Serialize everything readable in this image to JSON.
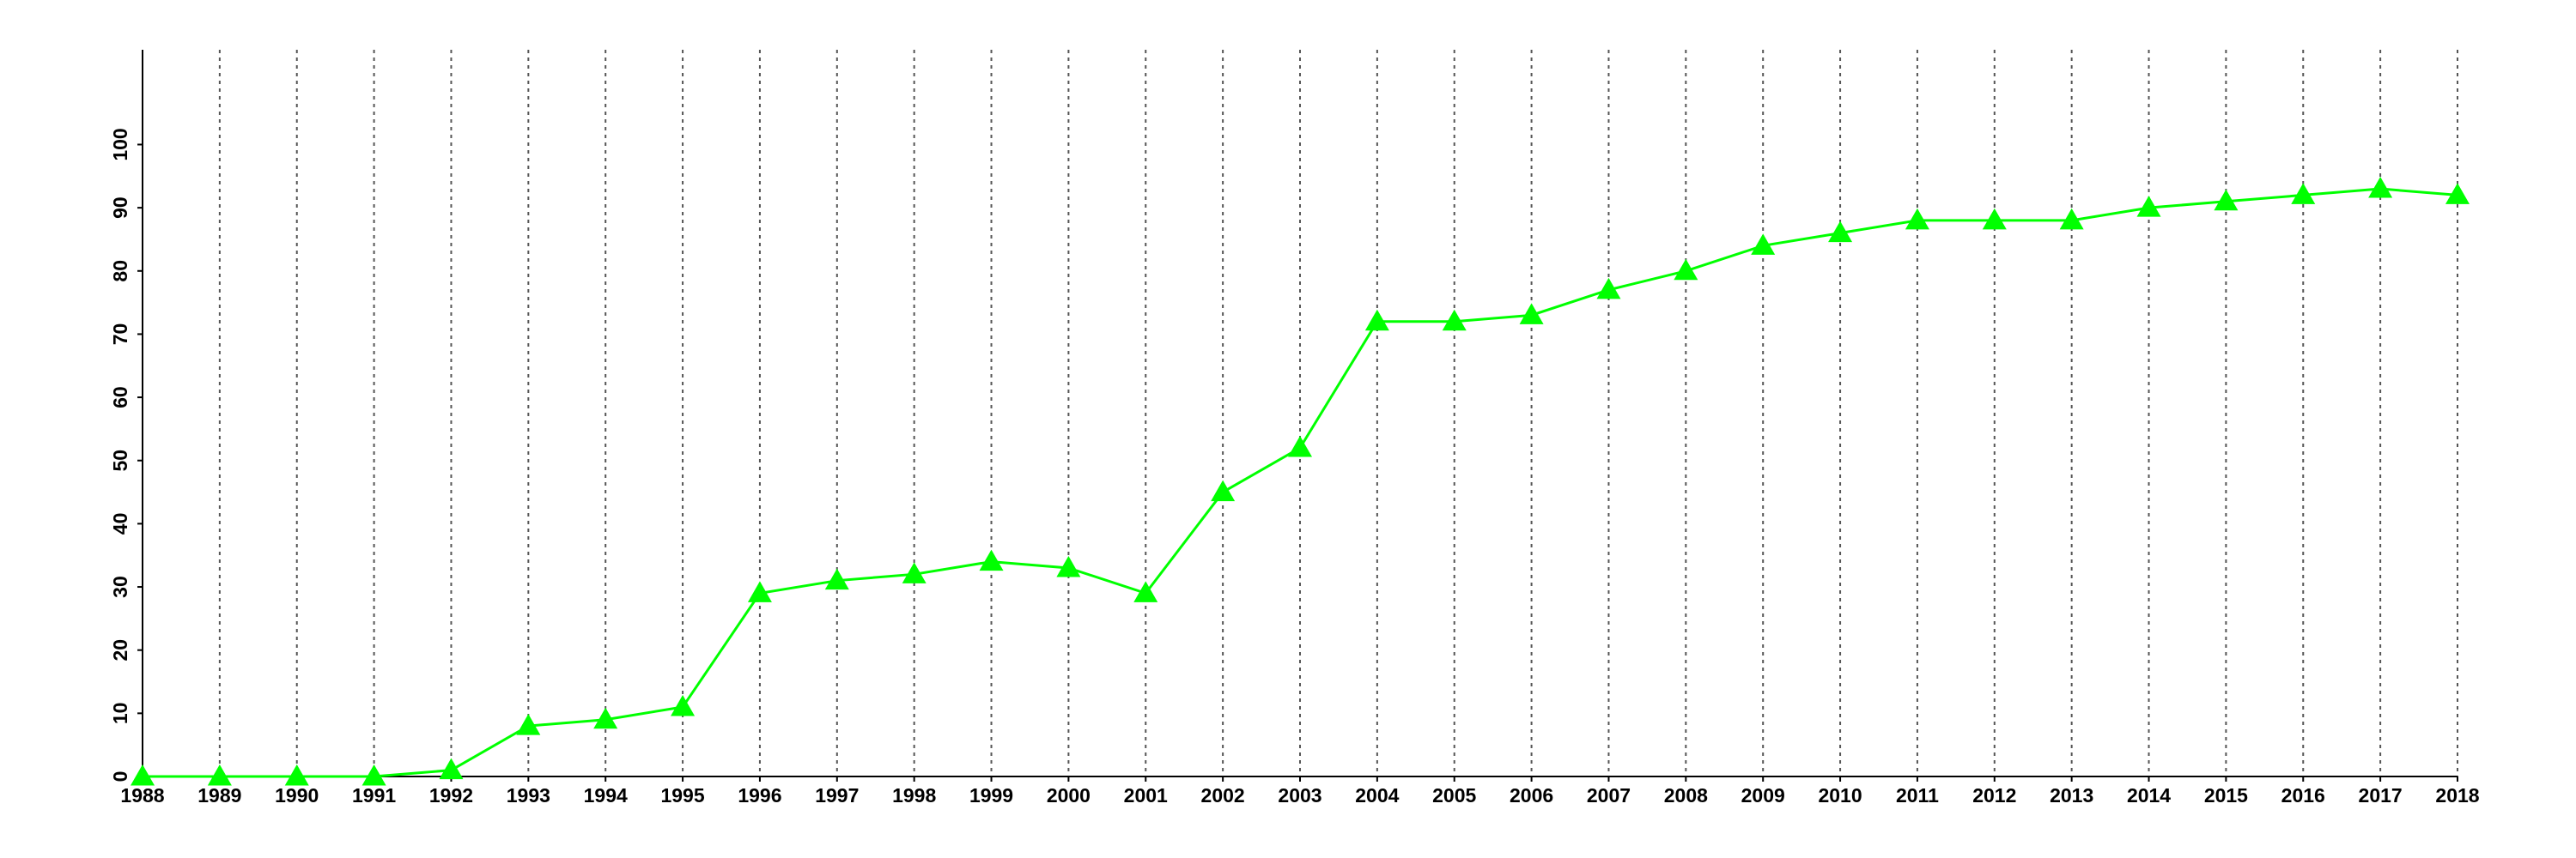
{
  "chart_data": {
    "type": "line",
    "x": [
      1988,
      1989,
      1990,
      1991,
      1992,
      1993,
      1994,
      1995,
      1996,
      1997,
      1998,
      1999,
      2000,
      2001,
      2002,
      2003,
      2004,
      2005,
      2006,
      2007,
      2008,
      2009,
      2010,
      2011,
      2012,
      2013,
      2014,
      2015,
      2016,
      2017,
      2018
    ],
    "values": [
      0,
      0,
      0,
      0,
      1,
      8,
      9,
      11,
      29,
      31,
      32,
      34,
      33,
      29,
      45,
      52,
      72,
      72,
      73,
      77,
      80,
      84,
      86,
      88,
      88,
      88,
      90,
      91,
      92,
      93,
      92
    ],
    "color": "#00ff00",
    "xlim": [
      1988,
      2018
    ],
    "xticks": [
      1988,
      1989,
      1990,
      1991,
      1992,
      1993,
      1994,
      1995,
      1996,
      1997,
      1998,
      1999,
      2000,
      2001,
      2002,
      2003,
      2004,
      2005,
      2006,
      2007,
      2008,
      2009,
      2010,
      2011,
      2012,
      2013,
      2014,
      2015,
      2016,
      2017,
      2018
    ],
    "ylim": [
      0,
      115
    ],
    "yticks": [
      0,
      10,
      20,
      30,
      40,
      50,
      60,
      70,
      80,
      90,
      100
    ],
    "grid": "x"
  }
}
